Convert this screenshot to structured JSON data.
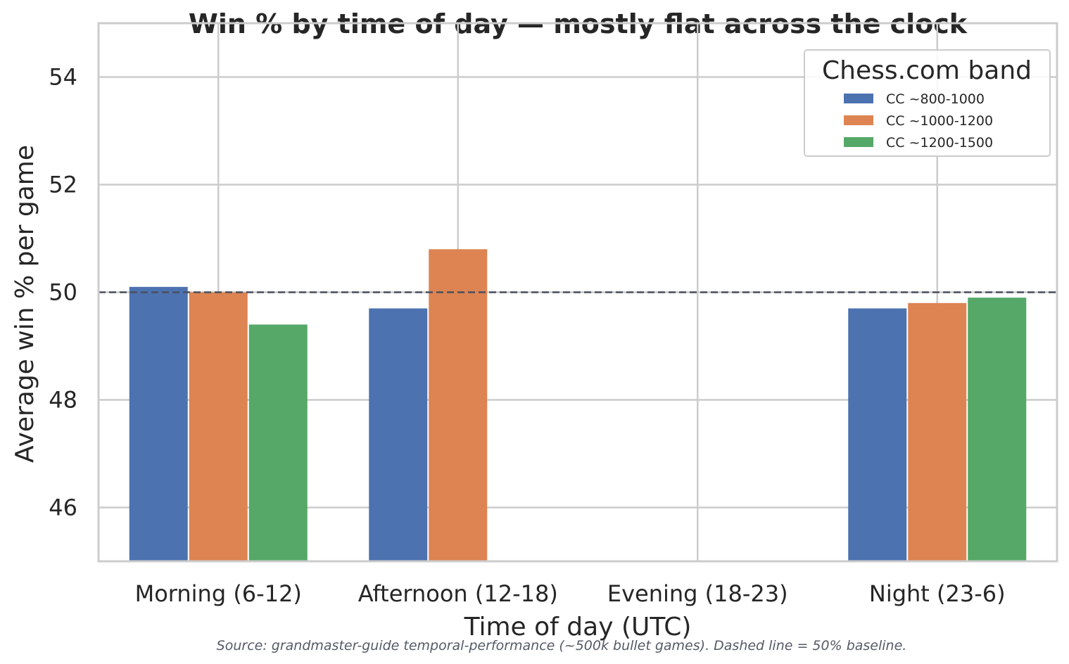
{
  "chart_data": {
    "type": "bar",
    "title": "Win % by time of day — mostly flat across the clock",
    "xlabel": "Time of day (UTC)",
    "ylabel": "Average win % per game",
    "categories": [
      "Morning (6-12)",
      "Afternoon (12-18)",
      "Evening (18-23)",
      "Night (23-6)"
    ],
    "series": [
      {
        "name": "CC ~800-1000",
        "color": "#4c72b0",
        "values": [
          50.1,
          49.7,
          null,
          49.7
        ]
      },
      {
        "name": "CC ~1000-1200",
        "color": "#dd8452",
        "values": [
          50.0,
          50.8,
          null,
          49.8
        ]
      },
      {
        "name": "CC ~1200-1500",
        "color": "#55a868",
        "values": [
          49.4,
          null,
          null,
          49.9
        ]
      }
    ],
    "ylim": [
      45,
      55
    ],
    "yticks": [
      46,
      48,
      50,
      52,
      54
    ],
    "baseline": 50,
    "grid": true,
    "legend_title": "Chess.com band",
    "legend_position": "top-right",
    "source_note": "Source: grandmaster-guide temporal-performance (~500k bullet games). Dashed line = 50% baseline."
  }
}
